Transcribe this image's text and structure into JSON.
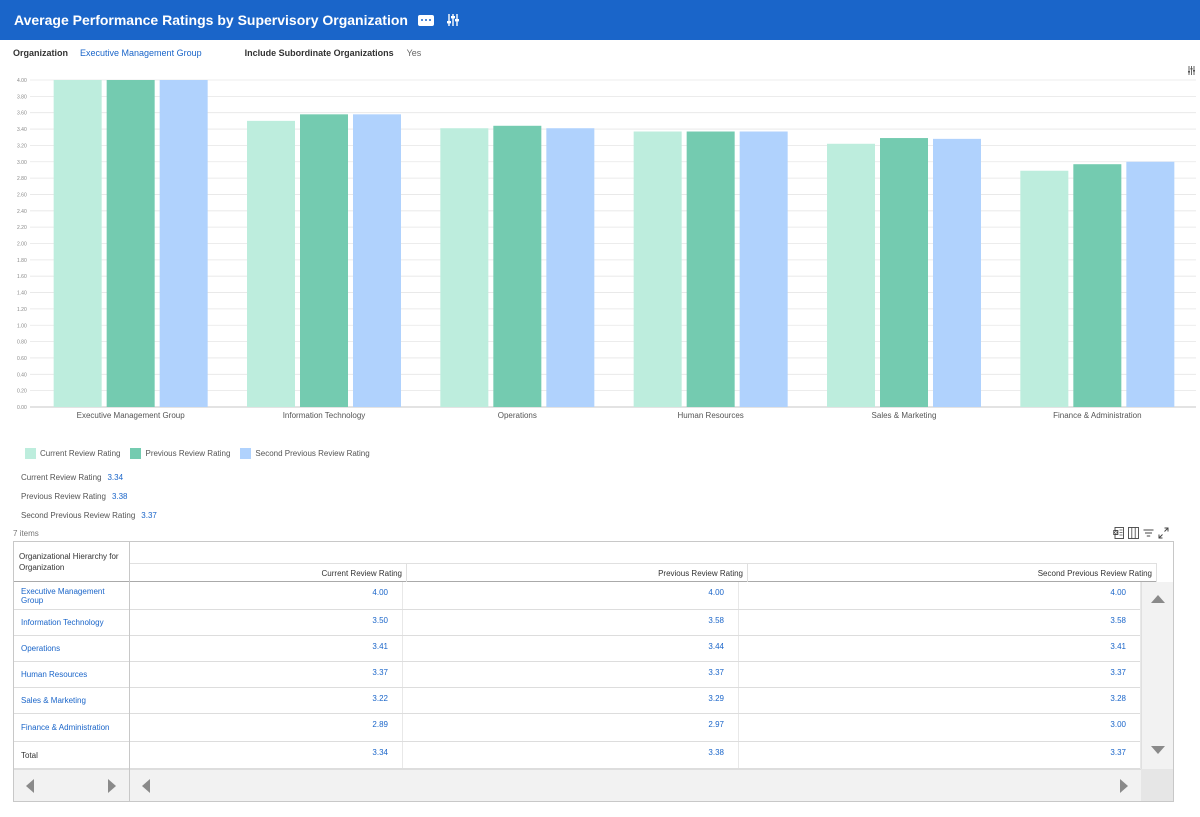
{
  "header": {
    "title": "Average Performance Ratings by Supervisory Organization"
  },
  "filters": {
    "organization_label": "Organization",
    "organization_value": "Executive Management Group",
    "subordinate_label": "Include Subordinate Organizations",
    "subordinate_value": "Yes"
  },
  "icons": {
    "more": "more-dots-icon",
    "tune": "sliders-icon",
    "chart_settings": "sliders-icon",
    "export": "excel-export-icon",
    "columns": "columns-icon",
    "filter": "filter-icon",
    "fullscreen": "expand-icon"
  },
  "colors": {
    "header": "#1a65c9",
    "current": "#bdeddd",
    "previous": "#74cbb0",
    "second_previous": "#b0d2fd",
    "link": "#1a65c9"
  },
  "chart_data": {
    "type": "bar",
    "categories": [
      "Executive Management Group",
      "Information Technology",
      "Operations",
      "Human Resources",
      "Sales & Marketing",
      "Finance & Administration"
    ],
    "series": [
      {
        "name": "Current Review Rating",
        "values": [
          4.0,
          3.5,
          3.41,
          3.37,
          3.22,
          2.89
        ]
      },
      {
        "name": "Previous Review Rating",
        "values": [
          4.0,
          3.58,
          3.44,
          3.37,
          3.29,
          2.97
        ]
      },
      {
        "name": "Second Previous Review Rating",
        "values": [
          4.0,
          3.58,
          3.41,
          3.37,
          3.28,
          3.0
        ]
      }
    ],
    "ylim": [
      0,
      4
    ],
    "yticks": [
      "0.00",
      "0.20",
      "0.40",
      "0.60",
      "0.80",
      "1.00",
      "1.20",
      "1.40",
      "1.60",
      "1.80",
      "2.00",
      "2.20",
      "2.40",
      "2.60",
      "2.80",
      "3.00",
      "3.20",
      "3.40",
      "3.60",
      "3.80",
      "4.00"
    ],
    "grid": true,
    "legend": "bottom-left"
  },
  "legend": [
    "Current Review Rating",
    "Previous Review Rating",
    "Second Previous Review Rating"
  ],
  "summary": [
    {
      "label": "Current Review Rating",
      "value": "3.34"
    },
    {
      "label": "Previous Review Rating",
      "value": "3.38"
    },
    {
      "label": "Second Previous Review Rating",
      "value": "3.37"
    }
  ],
  "table": {
    "count": "7 items",
    "row_header": "Organizational Hierarchy for Organization",
    "columns": [
      "Current Review Rating",
      "Previous Review Rating",
      "Second Previous Review Rating"
    ],
    "rows": [
      {
        "name": "Executive Management Group",
        "values": [
          "4.00",
          "4.00",
          "4.00"
        ]
      },
      {
        "name": "Information Technology",
        "values": [
          "3.50",
          "3.58",
          "3.58"
        ]
      },
      {
        "name": "Operations",
        "values": [
          "3.41",
          "3.44",
          "3.41"
        ]
      },
      {
        "name": "Human Resources",
        "values": [
          "3.37",
          "3.37",
          "3.37"
        ]
      },
      {
        "name": "Sales & Marketing",
        "values": [
          "3.22",
          "3.29",
          "3.28"
        ]
      },
      {
        "name": "Finance & Administration",
        "values": [
          "2.89",
          "2.97",
          "3.00"
        ]
      }
    ],
    "total": {
      "name": "Total",
      "values": [
        "3.34",
        "3.38",
        "3.37"
      ]
    }
  }
}
